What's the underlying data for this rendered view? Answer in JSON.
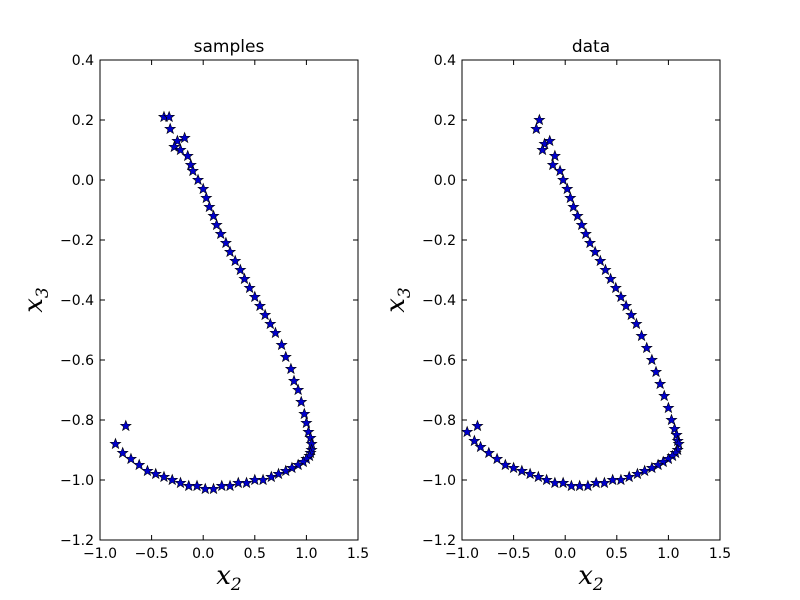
{
  "chart_data": [
    {
      "type": "scatter",
      "title": "samples",
      "xlabel": "x2",
      "ylabel": "x3",
      "xlabel_main": "x",
      "xlabel_sub": "2",
      "ylabel_main": "x",
      "ylabel_sub": "3",
      "xlim": [
        -1.0,
        1.5
      ],
      "ylim": [
        -1.2,
        0.4
      ],
      "xticks": [
        "−1.0",
        "−0.5",
        "0.0",
        "0.5",
        "1.0",
        "1.5"
      ],
      "yticks": [
        "−1.2",
        "−1.0",
        "−0.8",
        "−0.6",
        "−0.4",
        "−0.2",
        "0.0",
        "0.2",
        "0.4"
      ],
      "marker": "star",
      "marker_color": "#0000cc",
      "grid": false,
      "series": [
        {
          "x": [
            -0.38,
            -0.33,
            -0.32,
            -0.25,
            -0.18,
            -0.28,
            -0.22,
            -0.15,
            -0.12,
            -0.1,
            -0.05,
            0.0,
            0.03,
            0.06,
            0.1,
            0.13,
            0.17,
            0.22,
            0.26,
            0.31,
            0.36,
            0.4,
            0.45,
            0.5,
            0.55,
            0.6,
            0.65,
            0.7,
            0.76,
            0.8,
            0.85,
            0.88,
            0.92,
            0.95,
            0.98,
            1.0,
            1.02,
            1.04,
            1.05,
            1.05,
            1.04,
            1.03,
            1.0,
            0.97,
            0.92,
            0.86,
            0.8,
            0.73,
            0.66,
            0.58,
            0.5,
            0.42,
            0.34,
            0.26,
            0.18,
            0.1,
            0.02,
            -0.06,
            -0.14,
            -0.22,
            -0.3,
            -0.38,
            -0.46,
            -0.54,
            -0.62,
            -0.7,
            -0.78,
            -0.85,
            -0.75
          ],
          "y": [
            0.21,
            0.21,
            0.17,
            0.13,
            0.14,
            0.11,
            0.1,
            0.08,
            0.05,
            0.03,
            0.0,
            -0.03,
            -0.06,
            -0.09,
            -0.12,
            -0.15,
            -0.18,
            -0.21,
            -0.24,
            -0.27,
            -0.3,
            -0.33,
            -0.36,
            -0.39,
            -0.42,
            -0.45,
            -0.48,
            -0.51,
            -0.55,
            -0.59,
            -0.63,
            -0.67,
            -0.7,
            -0.74,
            -0.78,
            -0.81,
            -0.84,
            -0.86,
            -0.88,
            -0.9,
            -0.91,
            -0.92,
            -0.93,
            -0.94,
            -0.95,
            -0.96,
            -0.97,
            -0.98,
            -0.99,
            -1.0,
            -1.0,
            -1.01,
            -1.01,
            -1.02,
            -1.02,
            -1.03,
            -1.03,
            -1.02,
            -1.02,
            -1.01,
            -1.0,
            -0.99,
            -0.98,
            -0.97,
            -0.95,
            -0.93,
            -0.91,
            -0.88,
            -0.82
          ]
        }
      ]
    },
    {
      "type": "scatter",
      "title": "data",
      "xlabel": "x2",
      "ylabel": "x3",
      "xlabel_main": "x",
      "xlabel_sub": "2",
      "ylabel_main": "x",
      "ylabel_sub": "3",
      "xlim": [
        -1.0,
        1.5
      ],
      "ylim": [
        -1.2,
        0.4
      ],
      "xticks": [
        "−1.0",
        "−0.5",
        "0.0",
        "0.5",
        "1.0",
        "1.5"
      ],
      "yticks": [
        "−1.2",
        "−1.0",
        "−0.8",
        "−0.6",
        "−0.4",
        "−0.2",
        "0.0",
        "0.2",
        "0.4"
      ],
      "marker": "star",
      "marker_color": "#0000cc",
      "grid": false,
      "series": [
        {
          "x": [
            -0.25,
            -0.28,
            -0.2,
            -0.15,
            -0.22,
            -0.1,
            -0.12,
            -0.05,
            -0.02,
            0.02,
            0.05,
            0.08,
            0.12,
            0.16,
            0.2,
            0.24,
            0.29,
            0.34,
            0.39,
            0.44,
            0.49,
            0.54,
            0.59,
            0.64,
            0.69,
            0.74,
            0.79,
            0.84,
            0.88,
            0.92,
            0.96,
            1.0,
            1.03,
            1.06,
            1.08,
            1.09,
            1.1,
            1.09,
            1.07,
            1.04,
            1.0,
            0.95,
            0.9,
            0.84,
            0.77,
            0.7,
            0.62,
            0.54,
            0.46,
            0.38,
            0.3,
            0.22,
            0.14,
            0.06,
            -0.02,
            -0.1,
            -0.18,
            -0.26,
            -0.34,
            -0.42,
            -0.5,
            -0.58,
            -0.66,
            -0.74,
            -0.82,
            -0.88,
            -0.95,
            -0.85
          ],
          "y": [
            0.2,
            0.17,
            0.12,
            0.13,
            0.1,
            0.08,
            0.05,
            0.03,
            0.0,
            -0.03,
            -0.06,
            -0.09,
            -0.12,
            -0.15,
            -0.18,
            -0.21,
            -0.24,
            -0.27,
            -0.3,
            -0.33,
            -0.36,
            -0.39,
            -0.42,
            -0.45,
            -0.48,
            -0.52,
            -0.56,
            -0.6,
            -0.64,
            -0.68,
            -0.72,
            -0.76,
            -0.8,
            -0.83,
            -0.85,
            -0.87,
            -0.88,
            -0.9,
            -0.91,
            -0.92,
            -0.93,
            -0.94,
            -0.95,
            -0.96,
            -0.97,
            -0.98,
            -0.99,
            -1.0,
            -1.0,
            -1.01,
            -1.01,
            -1.02,
            -1.02,
            -1.02,
            -1.01,
            -1.01,
            -1.0,
            -0.99,
            -0.98,
            -0.97,
            -0.96,
            -0.95,
            -0.93,
            -0.91,
            -0.89,
            -0.87,
            -0.84,
            -0.82
          ]
        }
      ]
    }
  ]
}
